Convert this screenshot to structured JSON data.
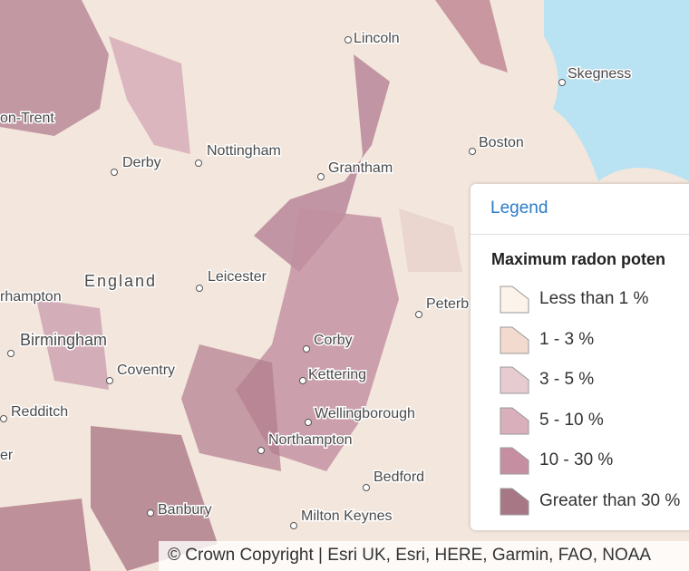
{
  "places": [
    "Lincoln",
    "Skegness",
    "on-Trent",
    "Boston",
    "Derby",
    "Nottingham",
    "Grantham",
    "England",
    "Leicester",
    "rhampton",
    "Peterb",
    "Birmingham",
    "Corby",
    "Coventry",
    "Kettering",
    "Redditch",
    "Wellingborough",
    "er",
    "Northampton",
    "Bedford",
    "Banbury",
    "Milton Keynes"
  ],
  "legend": {
    "header": "Legend",
    "title": "Maximum radon poten",
    "items": [
      {
        "label": "Less than 1 %",
        "color": "#fcf3ea"
      },
      {
        "label": "1 - 3 %",
        "color": "#f2dace"
      },
      {
        "label": "3 - 5 %",
        "color": "#e6ccd0"
      },
      {
        "label": "5 - 10 %",
        "color": "#d8afba"
      },
      {
        "label": "10 - 30 %",
        "color": "#c68ea1"
      },
      {
        "label": "Greater than 30 %",
        "color": "#a87786"
      }
    ]
  },
  "attribution": "© Crown Copyright | Esri UK, Esri, HERE, Garmin, FAO, NOAA"
}
